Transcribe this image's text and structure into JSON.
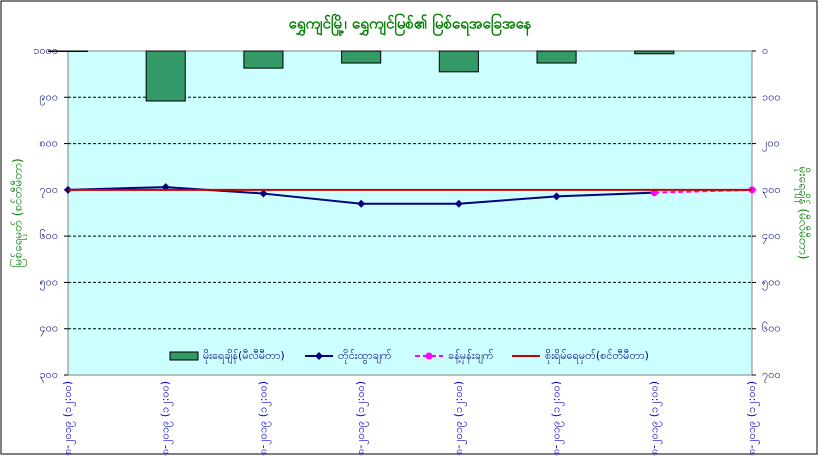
{
  "chart_data": {
    "type": "combo",
    "title": "ရွှေကျင်မြို့၊ ရွှေကျင်မြစ်၏ မြစ်ရေအခြေအနေ",
    "y_label": "မြစ်ရေမှတ် (စင်တီမီတာ)",
    "y2_label": "မိုးရေချိန် (မီလီမီတာ)",
    "categories": [
      "၁၀-၈-၂၀၁၉ (၁၂:၀၀)",
      "၁၁-၈-၂၀၁၉ (၁၂:၀၀)",
      "၁၂-၈-၂၀၁၉ (၁၂:၀၀)",
      "၁၃-၈-၂၀၁၉ (၁၂:၀၀)",
      "၁၄-၈-၂၀၁၉ (၁၂:၀၀)",
      "၁၅-၈-၂၀၁၉ (၁၂:၀၀)",
      "၁၆-၈-၂၀၁၉ (၁၂:၀၀)",
      "၁၇-၈-၂၀၁၉ (၁၂:၀၀)"
    ],
    "ylim": [
      300,
      1000
    ],
    "yticks": [
      {
        "value": 300,
        "label": "၃၀၀"
      },
      {
        "value": 400,
        "label": "၄၀၀"
      },
      {
        "value": 500,
        "label": "၅၀၀"
      },
      {
        "value": 600,
        "label": "၆၀၀"
      },
      {
        "value": 700,
        "label": "၇၀၀"
      },
      {
        "value": 800,
        "label": "၈၀၀"
      },
      {
        "value": 900,
        "label": "၉၀၀"
      },
      {
        "value": 1000,
        "label": "၁၀၀၀"
      }
    ],
    "y2lim": [
      0,
      700
    ],
    "y2_inverted": true,
    "y2ticks": [
      {
        "value": 0,
        "label": "၀"
      },
      {
        "value": 100,
        "label": "၁၀၀"
      },
      {
        "value": 200,
        "label": "၂၀၀"
      },
      {
        "value": 300,
        "label": "၃၀၀"
      },
      {
        "value": 400,
        "label": "၄၀၀"
      },
      {
        "value": 500,
        "label": "၅၀၀"
      },
      {
        "value": 600,
        "label": "၆၀၀"
      },
      {
        "value": 700,
        "label": "၇၀၀"
      }
    ],
    "grid": true,
    "background": "#ccffff",
    "series": [
      {
        "name": "မိုးရေချိန်(မီလီမီတာ)",
        "kind": "bar",
        "axis": "y2",
        "color": "#339966",
        "values": [
          1,
          108,
          37,
          26,
          45,
          26,
          6,
          null
        ]
      },
      {
        "name": "တိုင်းထွာချက်",
        "kind": "line",
        "marker": "diamond",
        "color": "#000080",
        "values": [
          700,
          706,
          692,
          670,
          670,
          686,
          694,
          null
        ]
      },
      {
        "name": "ခန့်မှန်းချက်",
        "kind": "line",
        "marker": "circle",
        "dashed": true,
        "color": "#ff00ff",
        "values": [
          null,
          null,
          null,
          null,
          null,
          null,
          694,
          700
        ]
      },
      {
        "name": "စိုးရိမ်ရေမှတ်(စင်တီမီတာ)",
        "kind": "line",
        "color": "#cc0000",
        "values": [
          700,
          700,
          700,
          700,
          700,
          700,
          700,
          700
        ]
      }
    ]
  }
}
